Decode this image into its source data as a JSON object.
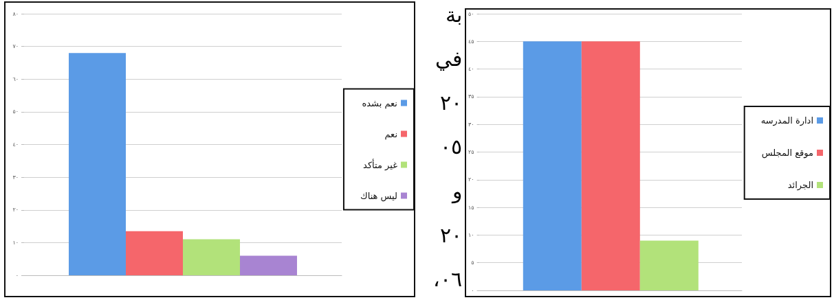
{
  "chart_data": [
    {
      "type": "bar",
      "categories": [
        null
      ],
      "series": [
        {
          "name": "نعم بشده",
          "color": "#5b9be6",
          "values": [
            68
          ]
        },
        {
          "name": "نعم",
          "color": "#f5666b",
          "values": [
            13.5
          ]
        },
        {
          "name": "غير متأكد",
          "color": "#b2e27a",
          "values": [
            11
          ]
        },
        {
          "name": "ليس هناك",
          "color": "#a884d2",
          "values": [
            6
          ]
        }
      ],
      "ylim": [
        0,
        80
      ],
      "yticks": [
        {
          "value": 0,
          "label": "٠"
        },
        {
          "value": 10,
          "label": "١٠"
        },
        {
          "value": 20,
          "label": "٢٠"
        },
        {
          "value": 30,
          "label": "٣٠"
        },
        {
          "value": 40,
          "label": "٤٠"
        },
        {
          "value": 50,
          "label": "٥٠"
        },
        {
          "value": 60,
          "label": "٦٠"
        },
        {
          "value": 70,
          "label": "٧٠"
        },
        {
          "value": 80,
          "label": "٨٠"
        }
      ],
      "grid": "y",
      "legend": "right"
    },
    {
      "type": "other",
      "annotations": [
        "بة",
        "في",
        "٢٠",
        "٠٥",
        "و",
        "٢٠",
        "٠٦،"
      ]
    },
    {
      "type": "bar",
      "categories": [
        null
      ],
      "series": [
        {
          "name": "ادارة المدرسه",
          "color": "#5b9be6",
          "values": [
            45
          ]
        },
        {
          "name": "موقع المجلس",
          "color": "#f5666b",
          "values": [
            45
          ]
        },
        {
          "name": "الجرائد",
          "color": "#b2e27a",
          "values": [
            9
          ]
        }
      ],
      "ylim": [
        0,
        50
      ],
      "yticks": [
        {
          "value": 0,
          "label": "٠"
        },
        {
          "value": 5,
          "label": "٥"
        },
        {
          "value": 10,
          "label": "١٠"
        },
        {
          "value": 15,
          "label": "١٥"
        },
        {
          "value": 20,
          "label": "٢٠"
        },
        {
          "value": 25,
          "label": "٢٥"
        },
        {
          "value": 30,
          "label": "٣٠"
        },
        {
          "value": 35,
          "label": "٣٥"
        },
        {
          "value": 40,
          "label": "٤٠"
        },
        {
          "value": 45,
          "label": "٤٥"
        },
        {
          "value": 50,
          "label": "٥٠"
        }
      ],
      "grid": "y",
      "legend": "right"
    }
  ]
}
